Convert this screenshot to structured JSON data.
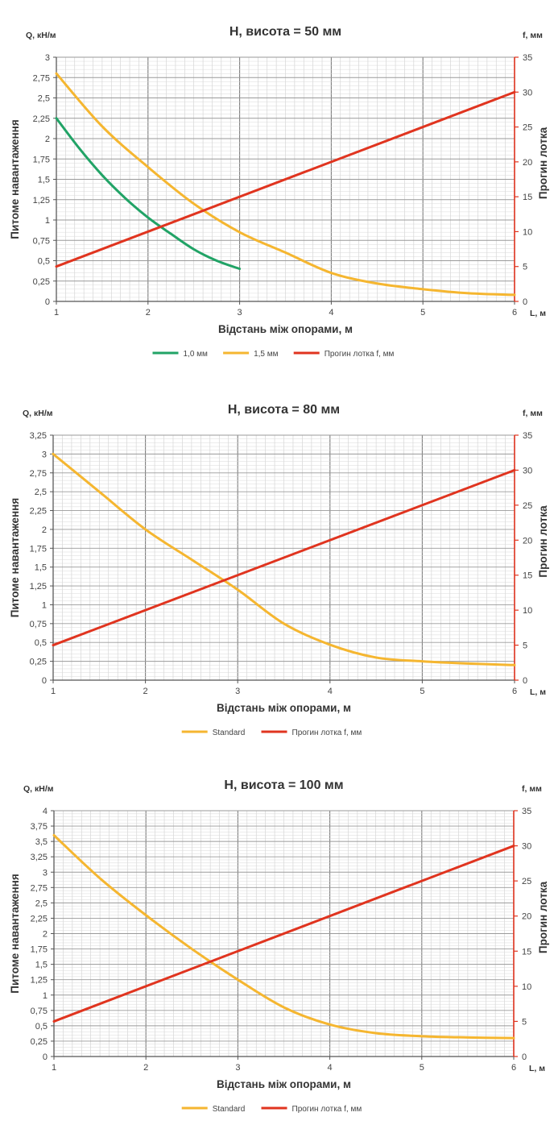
{
  "chart_data": [
    {
      "type": "line",
      "title": "H, висота = 50 мм",
      "xlabel": "Відстань між опорами, м",
      "ylabel": "Питоме навантаження",
      "y_unit": "Q, кН/м",
      "y2label": "Прогин лотка",
      "y2_unit": "f, мм",
      "x_unit": "L, м",
      "xlim": [
        1,
        6
      ],
      "ylim": [
        0,
        3
      ],
      "y_ticks": [
        "0",
        "0,25",
        "0,5",
        "0,75",
        "1",
        "1,25",
        "1,5",
        "1,75",
        "2",
        "2,25",
        "2,5",
        "2,75",
        "3"
      ],
      "y2lim": [
        0,
        35
      ],
      "y2_ticks": [
        "0",
        "5",
        "10",
        "15",
        "20",
        "25",
        "30",
        "35"
      ],
      "x_ticks": [
        "1",
        "2",
        "3",
        "4",
        "5",
        "6"
      ],
      "grid": true,
      "legend_position": "bottom",
      "series": [
        {
          "name": "1,0 мм",
          "axis": "left",
          "color": "#21a366",
          "x": [
            1,
            1.25,
            1.5,
            1.75,
            2,
            2.25,
            2.5,
            2.75,
            3
          ],
          "y": [
            2.25,
            1.88,
            1.55,
            1.27,
            1.03,
            0.83,
            0.64,
            0.5,
            0.4
          ]
        },
        {
          "name": "1,5 мм",
          "axis": "left",
          "color": "#f5b630",
          "x": [
            1,
            1.5,
            2,
            2.5,
            3,
            3.5,
            4,
            4.5,
            5,
            5.5,
            6
          ],
          "y": [
            2.8,
            2.15,
            1.65,
            1.2,
            0.85,
            0.6,
            0.35,
            0.22,
            0.15,
            0.1,
            0.08
          ]
        },
        {
          "name": "Прогин лотка f, мм",
          "axis": "right",
          "color": "#e0341f",
          "x": [
            1,
            6
          ],
          "y": [
            5,
            30
          ]
        }
      ]
    },
    {
      "type": "line",
      "title": "H, висота = 80 мм",
      "xlabel": "Відстань між опорами, м",
      "ylabel": "Питоме навантаження",
      "y_unit": "Q, кН/м",
      "y2label": "Прогин лотка",
      "y2_unit": "f, мм",
      "x_unit": "L, м",
      "xlim": [
        1,
        6
      ],
      "ylim": [
        0,
        3.25
      ],
      "y_ticks": [
        "0",
        "0,25",
        "0,5",
        "0,75",
        "1",
        "1,25",
        "1,5",
        "1,75",
        "2",
        "2,25",
        "2,5",
        "2,75",
        "3",
        "3,25"
      ],
      "y2lim": [
        0,
        35
      ],
      "y2_ticks": [
        "0",
        "5",
        "10",
        "15",
        "20",
        "25",
        "30",
        "35"
      ],
      "x_ticks": [
        "1",
        "2",
        "3",
        "4",
        "5",
        "6"
      ],
      "grid": true,
      "legend_position": "bottom",
      "series": [
        {
          "name": "Standard",
          "axis": "left",
          "color": "#f5b630",
          "x": [
            1,
            1.5,
            2,
            2.5,
            3,
            3.5,
            4,
            4.5,
            5,
            5.5,
            6
          ],
          "y": [
            3.0,
            2.5,
            2.0,
            1.6,
            1.2,
            0.75,
            0.47,
            0.3,
            0.25,
            0.22,
            0.2
          ]
        },
        {
          "name": "Прогин лотка f, мм",
          "axis": "right",
          "color": "#e0341f",
          "x": [
            1,
            6
          ],
          "y": [
            5,
            30
          ]
        }
      ]
    },
    {
      "type": "line",
      "title": "H, висота = 100 мм",
      "xlabel": "Відстань між опорами, м",
      "ylabel": "Питоме навантаження",
      "y_unit": "Q, кН/м",
      "y2label": "Прогин лотка",
      "y2_unit": "f, мм",
      "x_unit": "L, м",
      "xlim": [
        1,
        6
      ],
      "ylim": [
        0,
        4
      ],
      "y_ticks": [
        "0",
        "0,25",
        "0,5",
        "0,75",
        "1",
        "1,25",
        "1,5",
        "1,75",
        "2",
        "2,25",
        "2,5",
        "2,75",
        "3",
        "3,25",
        "3,5",
        "3,75",
        "4"
      ],
      "y2lim": [
        0,
        35
      ],
      "y2_ticks": [
        "0",
        "5",
        "10",
        "15",
        "20",
        "25",
        "30",
        "35"
      ],
      "x_ticks": [
        "1",
        "2",
        "3",
        "4",
        "5",
        "6"
      ],
      "grid": true,
      "legend_position": "bottom",
      "series": [
        {
          "name": "Standard",
          "axis": "left",
          "color": "#f5b630",
          "x": [
            1,
            1.5,
            2,
            2.5,
            3,
            3.5,
            4,
            4.5,
            5,
            5.5,
            6
          ],
          "y": [
            3.6,
            2.9,
            2.3,
            1.75,
            1.25,
            0.8,
            0.52,
            0.38,
            0.33,
            0.31,
            0.3
          ]
        },
        {
          "name": "Прогин лотка f, мм",
          "axis": "right",
          "color": "#e0341f",
          "x": [
            1,
            6
          ],
          "y": [
            5,
            30
          ]
        }
      ]
    }
  ]
}
